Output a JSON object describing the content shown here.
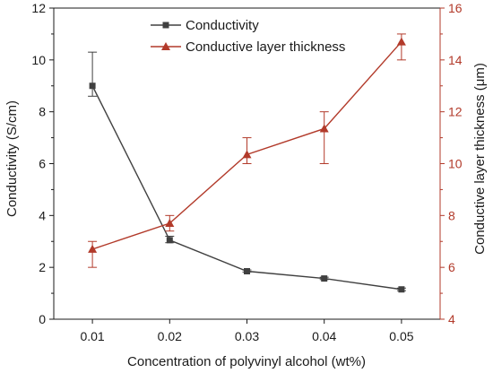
{
  "chart_data": {
    "type": "line",
    "xlabel": "Concentration of polyvinyl alcohol (wt%)",
    "ylabel_left": "Conductivity (S/cm)",
    "ylabel_right": "Conductive layer thickness (μm)",
    "x": [
      0.01,
      0.02,
      0.03,
      0.04,
      0.05
    ],
    "x_tick_labels": [
      "0.01",
      "0.02",
      "0.03",
      "0.04",
      "0.05"
    ],
    "xlim": [
      0.005,
      0.055
    ],
    "ylim_left": [
      0,
      12
    ],
    "ylim_right": [
      4,
      16
    ],
    "y_left_ticks": [
      0,
      2,
      4,
      6,
      8,
      10,
      12
    ],
    "y_right_ticks": [
      4,
      6,
      8,
      10,
      12,
      14,
      16
    ],
    "grid": false,
    "legend_position": "top-center",
    "series": [
      {
        "name": "Conductivity",
        "axis": "left",
        "color": "#404040",
        "marker": "square",
        "values": [
          9.0,
          3.05,
          1.85,
          1.57,
          1.15
        ],
        "error": [
          {
            "low": 8.6,
            "high": 10.3
          },
          {
            "low": 2.95,
            "high": 3.2
          },
          {
            "low": 1.82,
            "high": 1.9
          },
          {
            "low": 1.53,
            "high": 1.62
          },
          {
            "low": 1.1,
            "high": 1.2
          }
        ]
      },
      {
        "name": "Conductive layer thickness",
        "axis": "right",
        "color": "#b23a2a",
        "marker": "triangle",
        "values": [
          6.7,
          7.7,
          10.35,
          11.35,
          14.7
        ],
        "error": [
          {
            "low": 6.0,
            "high": 7.0
          },
          {
            "low": 7.4,
            "high": 8.0
          },
          {
            "low": 10.0,
            "high": 11.0
          },
          {
            "low": 10.0,
            "high": 12.0
          },
          {
            "low": 14.0,
            "high": 15.0
          }
        ]
      }
    ]
  }
}
